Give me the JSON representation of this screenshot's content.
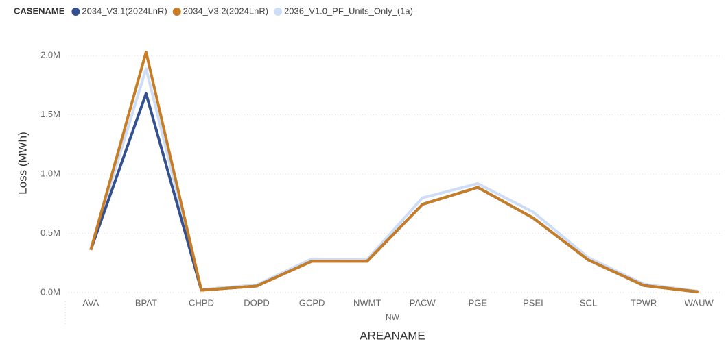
{
  "chart_data": {
    "type": "line",
    "legend_title": "CASENAME",
    "y_label": "Loss (MWh)",
    "x_label": "AREANAME",
    "x_group": "NW",
    "categories": [
      "AVA",
      "BPAT",
      "CHPD",
      "DOPD",
      "GCPD",
      "NWMT",
      "PACW",
      "PGE",
      "PSEI",
      "SCL",
      "TPWR",
      "WAUW"
    ],
    "series": [
      {
        "name": "2036_V1.0_PF_Units_Only_(1a)",
        "color": "#cddcf7",
        "values": [
          370000,
          1890000,
          25000,
          65000,
          285000,
          280000,
          800000,
          920000,
          680000,
          295000,
          72000,
          10000
        ]
      },
      {
        "name": "2034_V3.1(2024LnR)",
        "color": "#34508f",
        "values": [
          360000,
          1680000,
          20000,
          55000,
          265000,
          265000,
          745000,
          888000,
          630000,
          275000,
          60000,
          5000
        ]
      },
      {
        "name": "2034_V3.2(2024LnR)",
        "color": "#c67d25",
        "values": [
          360000,
          2030000,
          20000,
          55000,
          265000,
          265000,
          745000,
          888000,
          630000,
          275000,
          60000,
          5000
        ]
      }
    ],
    "legend_order": [
      1,
      2,
      0
    ],
    "ylim": [
      0,
      2100000
    ],
    "yticks": [
      {
        "value": 0,
        "label": "0.0M"
      },
      {
        "value": 500000,
        "label": "0.5M"
      },
      {
        "value": 1000000,
        "label": "1.0M"
      },
      {
        "value": 1500000,
        "label": "1.5M"
      },
      {
        "value": 2000000,
        "label": "2.0M"
      }
    ],
    "grid": true
  }
}
